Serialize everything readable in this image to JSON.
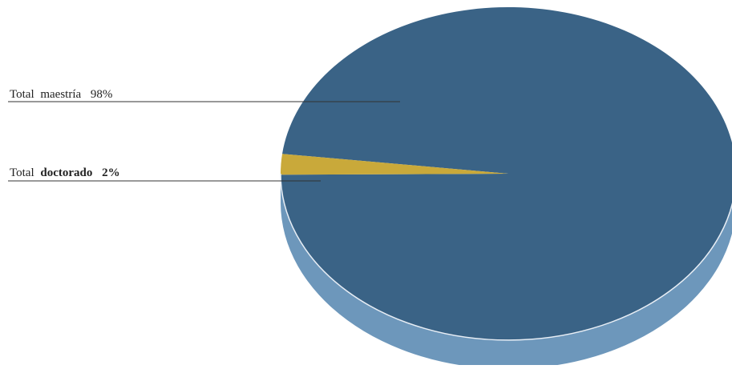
{
  "chart_data": {
    "type": "pie",
    "style": "3d",
    "title": "",
    "slices": [
      {
        "label_prefix": "Total",
        "label_word": "maestría",
        "value_text": "98%",
        "value": 98,
        "color": "#3a6386",
        "side_color": "#6d97bb",
        "bold_word": false
      },
      {
        "label_prefix": "Total",
        "label_word": "doctorado",
        "value_text": "2%",
        "value": 2,
        "color": "#c9a93a",
        "side_color": "#a9892a",
        "bold_word": true
      }
    ],
    "legend_placement": "left",
    "grid": false
  }
}
